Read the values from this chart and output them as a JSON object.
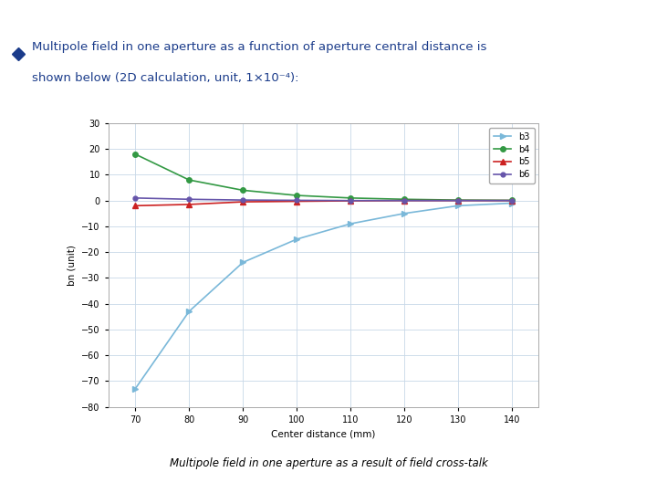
{
  "bullet_color": "#1a3b8a",
  "orange_bar_color": "#f07820",
  "x_values": [
    70,
    80,
    90,
    100,
    110,
    120,
    130,
    140
  ],
  "b3_values": [
    -73,
    -43,
    -24,
    -15,
    -9,
    -5,
    -2,
    -1
  ],
  "b4_values": [
    18,
    8,
    4,
    2,
    1,
    0.5,
    0.2,
    0.1
  ],
  "b5_values": [
    -2,
    -1.5,
    -0.5,
    -0.3,
    -0.1,
    0,
    0,
    0
  ],
  "b6_values": [
    1,
    0.5,
    0.2,
    0.1,
    0,
    0,
    0,
    0
  ],
  "b3_color": "#7ab8d9",
  "b4_color": "#339944",
  "b5_color": "#cc2222",
  "b6_color": "#6655aa",
  "xlabel": "Center distance (mm)",
  "ylabel": "bn (unit)",
  "xlim": [
    65,
    145
  ],
  "ylim": [
    -80,
    30
  ],
  "yticks": [
    30,
    20,
    10,
    0,
    -10,
    -20,
    -30,
    -40,
    -50,
    -60,
    -70,
    -80
  ],
  "xticks": [
    70,
    80,
    90,
    100,
    110,
    120,
    130,
    140
  ],
  "legend_labels": [
    "b3",
    "b4",
    "b5",
    "b6"
  ],
  "caption": "Multipole field in one aperture as a result of field cross-talk",
  "line1": "   Multipole field in one aperture as a function of aperture central distance is",
  "line2": "  shown below (2D calculation, unit, 1×10-4):"
}
